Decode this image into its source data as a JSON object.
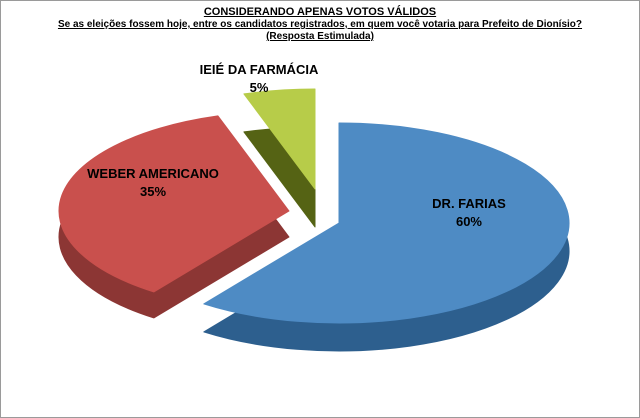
{
  "chart_data": {
    "type": "pie",
    "style": "3d-exploded",
    "title": "CONSIDERANDO APENAS VOTOS VÁLIDOS",
    "subtitle": "Se as eleições fossem hoje, entre os candidatos registrados, em quem você votaria para Prefeito de Dionísio?",
    "subtitle2": "(Resposta Estimulada)",
    "legend_position": "none",
    "slices": [
      {
        "label": "DR. FARIAS",
        "value": 60,
        "pct_label": "60%",
        "color": "#4e8bc4",
        "dark": "#2d5f8e"
      },
      {
        "label": "WEBER AMERICANO",
        "value": 35,
        "pct_label": "35%",
        "color": "#c9504d",
        "dark": "#8c3634"
      },
      {
        "label": "IEIÉ DA FARMÁCIA",
        "value": 5,
        "pct_label": "5%",
        "color": "#b7cc49",
        "dark": "#556314"
      }
    ]
  }
}
